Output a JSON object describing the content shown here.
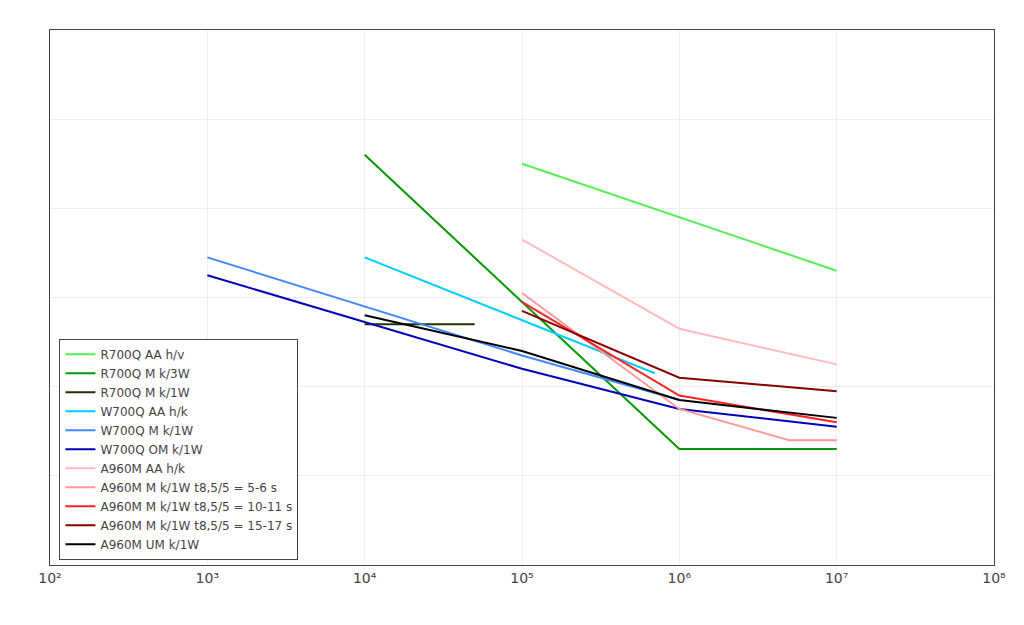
{
  "chart_data": {
    "type": "line",
    "log": "x",
    "grid": true,
    "legend": "lower left",
    "tick_labels": "x",
    "xlim": [
      100,
      100000000
    ],
    "xticks": [
      {
        "value": 100,
        "label": "10²"
      },
      {
        "value": 1000,
        "label": "10³"
      },
      {
        "value": 10000,
        "label": "10⁴"
      },
      {
        "value": 100000,
        "label": "10⁵"
      },
      {
        "value": 1000000,
        "label": "10⁶"
      },
      {
        "value": 10000000,
        "label": "10⁷"
      },
      {
        "value": 100000000,
        "label": "10⁸"
      }
    ],
    "ylim": [
      200,
      800
    ],
    "yticks": [
      200,
      300,
      400,
      500,
      600,
      700,
      800
    ],
    "series": [
      {
        "name": "R700Q AA h/v",
        "color": "#55ee55",
        "x": [
          100000,
          10000000
        ],
        "values": [
          650,
          530
        ]
      },
      {
        "name": "R700Q M k/3W",
        "color": "#009900",
        "x": [
          10000,
          1000000,
          10000000
        ],
        "values": [
          660,
          330,
          330
        ]
      },
      {
        "name": "R700Q M k/1W",
        "color": "#1a3300",
        "x": [
          10000,
          50000
        ],
        "values": [
          470,
          470
        ]
      },
      {
        "name": "W700Q AA h/k",
        "color": "#00ccff",
        "x": [
          10000,
          100000,
          700000
        ],
        "values": [
          545,
          475,
          415
        ]
      },
      {
        "name": "W700Q M k/1W",
        "color": "#4488ff",
        "x": [
          1000,
          100000,
          1000000
        ],
        "values": [
          545,
          435,
          385
        ]
      },
      {
        "name": "W700Q OM k/1W",
        "color": "#0000bb",
        "x": [
          1000,
          100000,
          1000000,
          10000000
        ],
        "values": [
          525,
          420,
          375,
          355
        ]
      },
      {
        "name": "A960M AA h/k",
        "color": "#ffbbbb",
        "x": [
          100000,
          1000000,
          10000000
        ],
        "values": [
          565,
          465,
          425
        ]
      },
      {
        "name": "A960M M k/1W t8,5/5 = 5-6 s",
        "color": "#ff9999",
        "x": [
          100000,
          1000000,
          5000000,
          10000000
        ],
        "values": [
          505,
          375,
          340,
          340
        ]
      },
      {
        "name": "A960M M k/1W t8,5/5 = 10-11 s",
        "color": "#ff2222",
        "x": [
          100000,
          1000000,
          10000000
        ],
        "values": [
          495,
          390,
          360
        ]
      },
      {
        "name": "A960M M k/1W t8,5/5 = 15-17 s",
        "color": "#880000",
        "x": [
          100000,
          1000000,
          10000000
        ],
        "values": [
          485,
          410,
          395
        ]
      },
      {
        "name": "A960M UM k/1W",
        "color": "#000000",
        "x": [
          10000,
          100000,
          1000000,
          10000000
        ],
        "values": [
          480,
          440,
          385,
          365
        ]
      }
    ]
  }
}
